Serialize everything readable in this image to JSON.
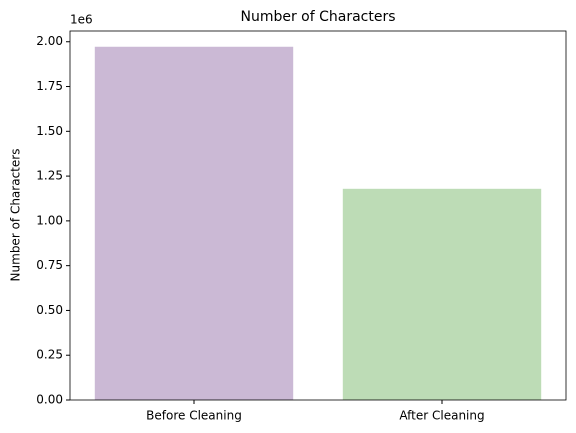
{
  "chart_data": {
    "type": "bar",
    "title": "Number of Characters",
    "ylabel": "Number of Characters",
    "y_offset_label": "1e6",
    "categories": [
      "Before Cleaning",
      "After Cleaning"
    ],
    "values": [
      1.972,
      1.179
    ],
    "colors": [
      "#cbb9d5",
      "#bddcb6"
    ],
    "ylim": [
      0,
      2.06
    ],
    "yticks": [
      {
        "value": 0,
        "label": "0.00"
      },
      {
        "value": 0.25,
        "label": "0.25"
      },
      {
        "value": 0.5,
        "label": "0.50"
      },
      {
        "value": 0.75,
        "label": "0.75"
      },
      {
        "value": 1,
        "label": "1.00"
      },
      {
        "value": 1.25,
        "label": "1.25"
      },
      {
        "value": 1.5,
        "label": "1.50"
      },
      {
        "value": 1.75,
        "label": "1.75"
      },
      {
        "value": 2,
        "label": "2.00"
      }
    ],
    "grid": false
  }
}
